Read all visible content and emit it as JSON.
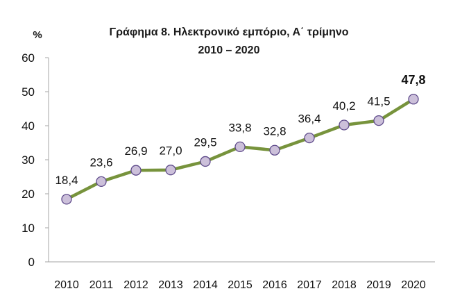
{
  "colors": {
    "line": "#77933c",
    "marker_fill": "#ccc0da",
    "marker_stroke": "#5f4b8b",
    "axis": "#a6a6a6",
    "highlight_label": "#77933c",
    "text": "#111111"
  },
  "chart_data": {
    "type": "line",
    "title": "Γράφημα 8. Ηλεκτρονικό εμπόριο,  Α΄ τρίμηνο",
    "subtitle": "2010 – 2020",
    "ylabel": "%",
    "xlabel": "",
    "ylim": [
      0,
      60
    ],
    "yticks": [
      "0",
      "10",
      "20",
      "30",
      "40",
      "50",
      "60"
    ],
    "categories": [
      "2010",
      "2011",
      "2012",
      "2013",
      "2014",
      "2015",
      "2016",
      "2017",
      "2018",
      "2019",
      "2020"
    ],
    "series": [
      {
        "values": [
          18.4,
          23.6,
          26.9,
          27.0,
          29.5,
          33.8,
          32.8,
          36.4,
          40.2,
          41.5,
          47.8
        ]
      }
    ],
    "data_labels": [
      "18,4",
      "23,6",
      "26,9",
      "27,0",
      "29,5",
      "33,8",
      "32,8",
      "36,4",
      "40,2",
      "41,5",
      "47,8"
    ],
    "grid": false,
    "legend": "none"
  }
}
